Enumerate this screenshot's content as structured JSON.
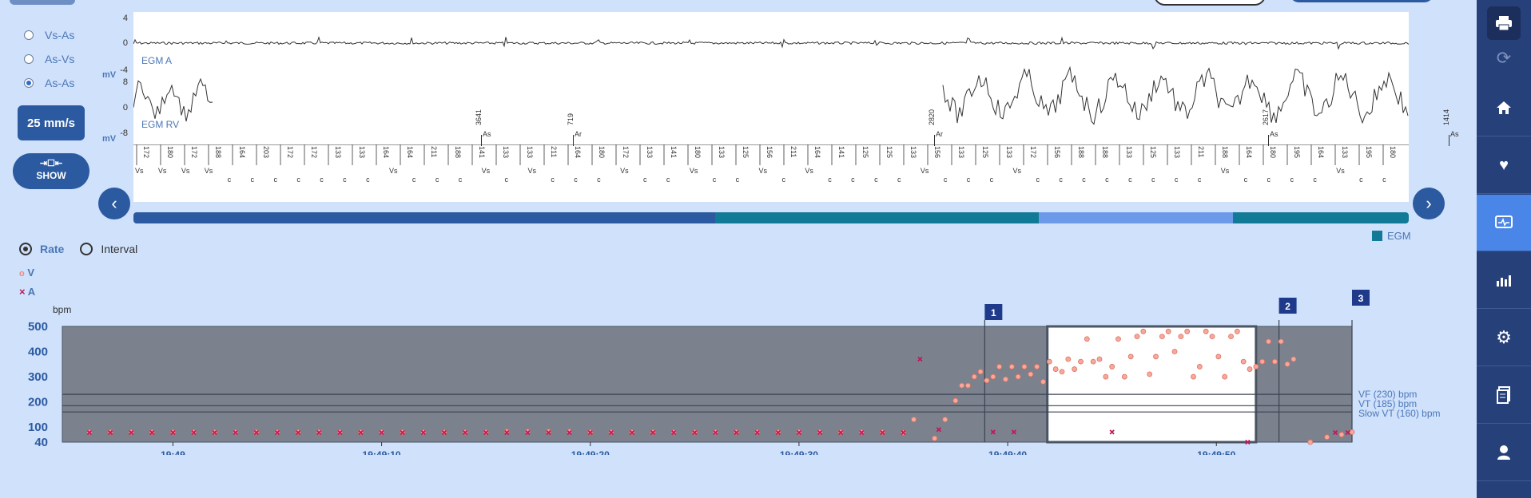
{
  "left_panel": {
    "radios": [
      {
        "label": "Vs-As",
        "selected": false
      },
      {
        "label": "As-Vs",
        "selected": false
      },
      {
        "label": "As-As",
        "selected": true
      }
    ],
    "speed_label": "25 mm/s",
    "show_label": "SHOW",
    "show_icon": "expand-icon"
  },
  "egm": {
    "channel_a": {
      "label": "EGM A",
      "ticks": [
        "4",
        "0",
        "-4"
      ],
      "unit": "mV"
    },
    "channel_rv": {
      "label": "EGM RV",
      "ticks": [
        "8",
        "0",
        "-8"
      ],
      "unit": "mV"
    },
    "upper_markers": [
      {
        "value": "3641",
        "tag": "As"
      },
      {
        "value": "719",
        "tag": "Ar"
      },
      {
        "value": "2820",
        "tag": "Ar"
      },
      {
        "value": "2617",
        "tag": "As"
      },
      {
        "value": "1414",
        "tag": "As"
      }
    ],
    "intervals": [
      "172",
      "180",
      "172",
      "188",
      "164",
      "203",
      "172",
      "172",
      "133",
      "133",
      "164",
      "164",
      "211",
      "188",
      "141",
      "133",
      "133",
      "211",
      "164",
      "180",
      "172",
      "133",
      "141",
      "180",
      "133",
      "125",
      "156",
      "211",
      "164",
      "141",
      "125",
      "125",
      "133",
      "156",
      "133",
      "125",
      "133",
      "172",
      "156",
      "188",
      "188",
      "133",
      "125",
      "133",
      "211",
      "188",
      "164",
      "180",
      "195",
      "164",
      "133",
      "195",
      "180"
    ],
    "marker_codes": [
      "Vs",
      "Vs",
      "Vs",
      "Vs",
      "c",
      "c",
      "c",
      "c",
      "c",
      "c",
      "c",
      "Vs",
      "c",
      "c",
      "c",
      "Vs",
      "c",
      "Vs",
      "c",
      "c",
      "c",
      "Vs",
      "c",
      "c",
      "Vs",
      "c",
      "c",
      "Vs",
      "c",
      "Vs",
      "c",
      "c",
      "c",
      "c",
      "Vs",
      "c",
      "c",
      "c",
      "Vs",
      "c",
      "c",
      "c",
      "c",
      "c",
      "c",
      "c",
      "c",
      "Vs",
      "c",
      "c",
      "c",
      "c",
      "Vs",
      "c",
      "c"
    ]
  },
  "legend": {
    "egm_label": "EGM"
  },
  "progress_colors": {
    "dark": "#2c5aa0",
    "teal": "#117a96",
    "light": "#6d9ae8"
  },
  "rate_controls": {
    "rate_label": "Rate",
    "interval_label": "Interval",
    "rate_selected": true,
    "series": [
      {
        "symbol": "o",
        "label": "V",
        "color": "#f08a7a"
      },
      {
        "symbol": "×",
        "label": "A",
        "color": "#c2185b"
      }
    ]
  },
  "chart_data": {
    "type": "scatter",
    "ylabel": "bpm",
    "yticks": [
      40,
      100,
      200,
      300,
      400,
      500
    ],
    "ylim": [
      40,
      500
    ],
    "xticks": [
      "19:49",
      "19:49:10",
      "19:49:20",
      "19:49:30",
      "19:49:40",
      "19:49:50"
    ],
    "xlim_seconds": [
      -5.3,
      56.5
    ],
    "reference_lines": [
      {
        "label": "VF (230) bpm",
        "value": 230
      },
      {
        "label": "VT (185) bpm",
        "value": 185
      },
      {
        "label": "Slow VT (160) bpm",
        "value": 160
      }
    ],
    "episode_markers": [
      {
        "label": "1",
        "t": 38.9
      },
      {
        "label": "2",
        "t": 53.0
      },
      {
        "label": "3",
        "t": 56.5
      }
    ],
    "highlight_window_seconds": [
      41.9,
      51.9
    ],
    "series": [
      {
        "name": "V",
        "points": [
          [
            -4,
            80
          ],
          [
            -3,
            80
          ],
          [
            -2,
            80
          ],
          [
            -1,
            80
          ],
          [
            0,
            80
          ],
          [
            1,
            80
          ],
          [
            2,
            80
          ],
          [
            3,
            80
          ],
          [
            4,
            80
          ],
          [
            5,
            80
          ],
          [
            6,
            80
          ],
          [
            7,
            80
          ],
          [
            8,
            80
          ],
          [
            9,
            80
          ],
          [
            10,
            80
          ],
          [
            11,
            80
          ],
          [
            12,
            80
          ],
          [
            13,
            80
          ],
          [
            14,
            80
          ],
          [
            15,
            80
          ],
          [
            16,
            82
          ],
          [
            17,
            82
          ],
          [
            18,
            82
          ],
          [
            19,
            82
          ],
          [
            20,
            80
          ],
          [
            21,
            80
          ],
          [
            22,
            80
          ],
          [
            23,
            80
          ],
          [
            24,
            80
          ],
          [
            25,
            80
          ],
          [
            26,
            80
          ],
          [
            27,
            80
          ],
          [
            28,
            80
          ],
          [
            29,
            80
          ],
          [
            30,
            80
          ],
          [
            31,
            80
          ],
          [
            32,
            80
          ],
          [
            33,
            80
          ],
          [
            34,
            80
          ],
          [
            35,
            78
          ],
          [
            35.5,
            130
          ],
          [
            36.5,
            55
          ],
          [
            37,
            130
          ],
          [
            37.5,
            205
          ],
          [
            37.8,
            265
          ],
          [
            38.1,
            265
          ],
          [
            38.4,
            300
          ],
          [
            38.7,
            320
          ],
          [
            39,
            285
          ],
          [
            39.3,
            300
          ],
          [
            39.6,
            340
          ],
          [
            39.9,
            290
          ],
          [
            40.2,
            340
          ],
          [
            40.5,
            300
          ],
          [
            40.8,
            340
          ],
          [
            41.1,
            310
          ],
          [
            41.4,
            340
          ],
          [
            41.7,
            280
          ],
          [
            42,
            360
          ],
          [
            42.3,
            330
          ],
          [
            42.6,
            320
          ],
          [
            42.9,
            370
          ],
          [
            43.2,
            330
          ],
          [
            43.5,
            360
          ],
          [
            43.8,
            450
          ],
          [
            44.1,
            360
          ],
          [
            44.4,
            370
          ],
          [
            44.7,
            300
          ],
          [
            45,
            340
          ],
          [
            45.3,
            450
          ],
          [
            45.6,
            300
          ],
          [
            45.9,
            380
          ],
          [
            46.2,
            460
          ],
          [
            46.5,
            480
          ],
          [
            46.8,
            310
          ],
          [
            47.1,
            380
          ],
          [
            47.4,
            460
          ],
          [
            47.7,
            480
          ],
          [
            48,
            400
          ],
          [
            48.3,
            460
          ],
          [
            48.6,
            480
          ],
          [
            48.9,
            300
          ],
          [
            49.2,
            340
          ],
          [
            49.5,
            480
          ],
          [
            49.8,
            460
          ],
          [
            50.1,
            380
          ],
          [
            50.4,
            300
          ],
          [
            50.7,
            460
          ],
          [
            51,
            480
          ],
          [
            51.3,
            360
          ],
          [
            51.6,
            330
          ],
          [
            51.9,
            340
          ],
          [
            52.2,
            360
          ],
          [
            52.5,
            440
          ],
          [
            52.8,
            360
          ],
          [
            53.1,
            440
          ],
          [
            53.4,
            350
          ],
          [
            53.7,
            370
          ],
          [
            54.5,
            40
          ],
          [
            55.3,
            60
          ],
          [
            56,
            70
          ],
          [
            56.5,
            80
          ]
        ]
      },
      {
        "name": "A",
        "points": [
          [
            -4,
            78
          ],
          [
            -3,
            78
          ],
          [
            -2,
            78
          ],
          [
            -1,
            78
          ],
          [
            0,
            78
          ],
          [
            1,
            78
          ],
          [
            2,
            78
          ],
          [
            3,
            78
          ],
          [
            4,
            78
          ],
          [
            5,
            78
          ],
          [
            6,
            78
          ],
          [
            7,
            78
          ],
          [
            8,
            78
          ],
          [
            9,
            78
          ],
          [
            10,
            78
          ],
          [
            11,
            78
          ],
          [
            12,
            78
          ],
          [
            13,
            78
          ],
          [
            14,
            78
          ],
          [
            15,
            78
          ],
          [
            16,
            78
          ],
          [
            17,
            78
          ],
          [
            18,
            78
          ],
          [
            19,
            78
          ],
          [
            20,
            78
          ],
          [
            21,
            78
          ],
          [
            22,
            78
          ],
          [
            23,
            78
          ],
          [
            24,
            78
          ],
          [
            25,
            78
          ],
          [
            26,
            78
          ],
          [
            27,
            78
          ],
          [
            28,
            78
          ],
          [
            29,
            78
          ],
          [
            30,
            78
          ],
          [
            31,
            78
          ],
          [
            32,
            78
          ],
          [
            33,
            78
          ],
          [
            34,
            78
          ],
          [
            35,
            78
          ],
          [
            35.8,
            370
          ],
          [
            36.7,
            90
          ],
          [
            39.3,
            80
          ],
          [
            40.3,
            80
          ],
          [
            45,
            80
          ],
          [
            51.5,
            40
          ],
          [
            55.7,
            78
          ],
          [
            56.3,
            78
          ]
        ]
      }
    ]
  },
  "sidebar": {
    "items": [
      {
        "icon": "printer-icon",
        "label": ""
      },
      {
        "icon": "sync-icon",
        "label": ""
      },
      {
        "icon": "home-icon",
        "label": ""
      },
      {
        "icon": "heart-settings-icon",
        "label": ""
      },
      {
        "icon": "monitor-egm-icon",
        "label": ""
      },
      {
        "icon": "bar-chart-icon",
        "label": ""
      },
      {
        "icon": "gear-icon",
        "label": ""
      },
      {
        "icon": "report-icon",
        "label": ""
      },
      {
        "icon": "user-icon",
        "label": ""
      }
    ]
  }
}
